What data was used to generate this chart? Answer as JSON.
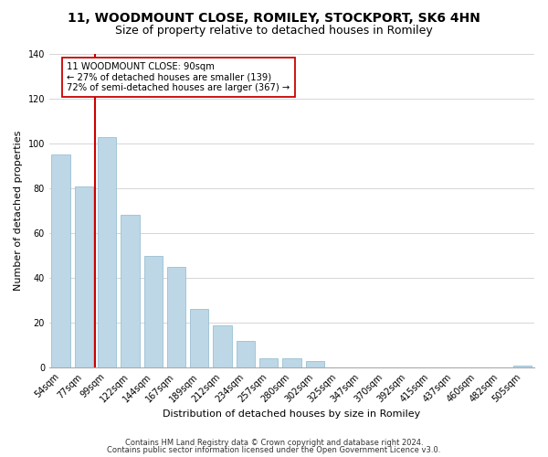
{
  "title": "11, WOODMOUNT CLOSE, ROMILEY, STOCKPORT, SK6 4HN",
  "subtitle": "Size of property relative to detached houses in Romiley",
  "xlabel": "Distribution of detached houses by size in Romiley",
  "ylabel": "Number of detached properties",
  "categories": [
    "54sqm",
    "77sqm",
    "99sqm",
    "122sqm",
    "144sqm",
    "167sqm",
    "189sqm",
    "212sqm",
    "234sqm",
    "257sqm",
    "280sqm",
    "302sqm",
    "325sqm",
    "347sqm",
    "370sqm",
    "392sqm",
    "415sqm",
    "437sqm",
    "460sqm",
    "482sqm",
    "505sqm"
  ],
  "values": [
    95,
    81,
    103,
    68,
    50,
    45,
    26,
    19,
    12,
    4,
    4,
    3,
    0,
    0,
    0,
    0,
    0,
    0,
    0,
    0,
    1
  ],
  "bar_color": "#bdd7e7",
  "line_color": "#cc0000",
  "ylim": [
    0,
    140
  ],
  "yticks": [
    0,
    20,
    40,
    60,
    80,
    100,
    120,
    140
  ],
  "annotation_title": "11 WOODMOUNT CLOSE: 90sqm",
  "annotation_line1": "← 27% of detached houses are smaller (139)",
  "annotation_line2": "72% of semi-detached houses are larger (367) →",
  "footer1": "Contains HM Land Registry data © Crown copyright and database right 2024.",
  "footer2": "Contains public sector information licensed under the Open Government Licence v3.0.",
  "background_color": "#ffffff",
  "grid_color": "#d0d0d0",
  "title_fontsize": 10,
  "subtitle_fontsize": 9,
  "axis_label_fontsize": 8,
  "tick_fontsize": 7,
  "footer_fontsize": 6
}
